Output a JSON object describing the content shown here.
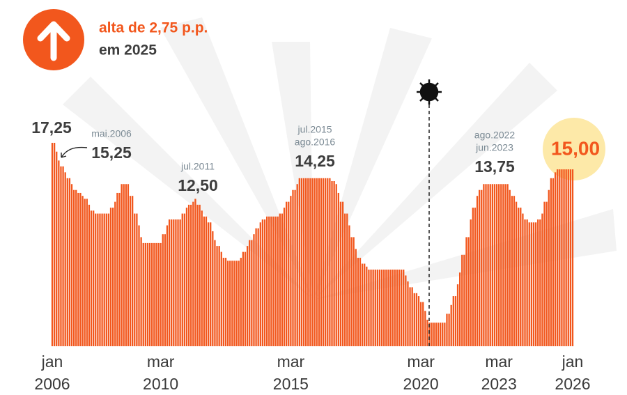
{
  "chart_data": {
    "type": "bar",
    "title": "alta de 2,75 p.p.",
    "subtitle": "em 2025",
    "color": "#f2571d",
    "ylim": [
      0,
      17.25
    ],
    "annotations": [
      "mai.2006",
      "jul.2011",
      "jul.2015",
      "ago.2016",
      "ago.2022",
      "jun.2023"
    ],
    "categories": [
      "jan\n2006",
      null,
      null,
      null,
      null,
      null,
      null,
      null,
      null,
      null,
      null,
      null,
      null,
      null,
      null,
      null,
      null,
      null,
      null,
      null,
      null,
      null,
      null,
      null,
      null,
      null,
      null,
      null,
      null,
      null,
      null,
      null,
      null,
      null,
      null,
      null,
      null,
      null,
      null,
      null,
      null,
      null,
      null,
      null,
      null,
      null,
      null,
      null,
      null,
      null,
      "mar\n2010",
      null,
      null,
      null,
      null,
      null,
      null,
      null,
      null,
      null,
      null,
      null,
      null,
      null,
      null,
      null,
      null,
      null,
      null,
      null,
      null,
      null,
      null,
      null,
      null,
      null,
      null,
      null,
      null,
      null,
      null,
      null,
      null,
      null,
      null,
      null,
      null,
      null,
      null,
      null,
      null,
      null,
      null,
      null,
      null,
      null,
      null,
      null,
      null,
      null,
      null,
      null,
      null,
      null,
      null,
      null,
      null,
      null,
      null,
      null,
      "mar\n2015",
      null,
      null,
      null,
      null,
      null,
      null,
      null,
      null,
      null,
      null,
      null,
      null,
      null,
      null,
      null,
      null,
      null,
      null,
      null,
      null,
      null,
      null,
      null,
      null,
      null,
      null,
      null,
      null,
      null,
      null,
      null,
      null,
      null,
      null,
      null,
      null,
      null,
      null,
      null,
      null,
      null,
      null,
      null,
      null,
      null,
      null,
      null,
      null,
      null,
      null,
      null,
      null,
      null,
      null,
      null,
      null,
      null,
      null,
      null,
      "mar\n2020",
      null,
      null,
      null,
      null,
      null,
      null,
      null,
      null,
      null,
      null,
      null,
      null,
      null,
      null,
      null,
      null,
      null,
      null,
      null,
      null,
      null,
      null,
      null,
      null,
      null,
      null,
      null,
      null,
      null,
      null,
      null,
      null,
      null,
      null,
      null,
      "mar\n2023",
      null,
      null,
      null,
      null,
      null,
      null,
      null,
      null,
      null,
      null,
      null,
      null,
      null,
      null,
      null,
      null,
      null,
      null,
      null,
      null,
      null,
      null,
      null,
      null,
      null,
      null,
      null,
      null,
      null,
      null,
      null,
      null,
      null,
      "jan\n2026"
    ],
    "values": [
      17.25,
      17.25,
      16.5,
      15.75,
      15.25,
      15.25,
      14.75,
      14.25,
      14.25,
      13.75,
      13.25,
      13.25,
      13,
      13,
      12.75,
      12.5,
      12.5,
      12,
      11.5,
      11.5,
      11.25,
      11.25,
      11.25,
      11.25,
      11.25,
      11.25,
      11.25,
      11.75,
      11.75,
      12.25,
      13,
      13,
      13.75,
      13.75,
      13.75,
      13.75,
      12.75,
      12.75,
      11.25,
      11.25,
      10.25,
      9.25,
      8.75,
      8.75,
      8.75,
      8.75,
      8.75,
      8.75,
      8.75,
      8.75,
      8.75,
      9.5,
      9.5,
      10.25,
      10.75,
      10.75,
      10.75,
      10.75,
      10.75,
      10.75,
      11.25,
      11.25,
      11.75,
      12,
      12,
      12.25,
      12.5,
      12,
      12,
      11.5,
      11,
      11,
      10.5,
      10.5,
      9.75,
      9,
      8.5,
      8.5,
      8,
      7.5,
      7.5,
      7.25,
      7.25,
      7.25,
      7.25,
      7.25,
      7.25,
      7.5,
      8,
      8,
      8.5,
      9,
      9,
      9.5,
      10,
      10,
      10.5,
      10.75,
      10.75,
      11,
      11,
      11,
      11,
      11,
      11,
      11.25,
      11.25,
      11.75,
      12.25,
      12.25,
      12.75,
      13.25,
      13.25,
      13.75,
      14.25,
      14.25,
      14.25,
      14.25,
      14.25,
      14.25,
      14.25,
      14.25,
      14.25,
      14.25,
      14.25,
      14.25,
      14.25,
      14.25,
      14.25,
      14,
      14,
      13.75,
      13,
      12.25,
      12.25,
      11.25,
      11.25,
      10.25,
      9.25,
      9.25,
      8.25,
      7.5,
      7.5,
      7,
      7,
      6.75,
      6.5,
      6.5,
      6.5,
      6.5,
      6.5,
      6.5,
      6.5,
      6.5,
      6.5,
      6.5,
      6.5,
      6.5,
      6.5,
      6.5,
      6.5,
      6.5,
      6.5,
      6,
      5.5,
      5,
      5,
      4.5,
      4.5,
      4.25,
      3.75,
      3.75,
      3,
      2.25,
      2,
      2,
      2,
      2,
      2,
      2,
      2,
      2,
      2.75,
      2.75,
      3.5,
      4.25,
      4.25,
      5.25,
      6.25,
      7.75,
      7.75,
      9.25,
      9.25,
      10.75,
      11.75,
      11.75,
      12.75,
      13.25,
      13.25,
      13.75,
      13.75,
      13.75,
      13.75,
      13.75,
      13.75,
      13.75,
      13.75,
      13.75,
      13.75,
      13.75,
      13.75,
      13.25,
      12.75,
      12.75,
      12.25,
      11.75,
      11.75,
      11.25,
      10.75,
      10.75,
      10.5,
      10.5,
      10.5,
      10.5,
      10.75,
      10.75,
      11.25,
      12.25,
      12.25,
      13.25,
      14.25,
      14.25,
      14.75,
      15,
      15,
      15,
      15,
      15,
      15,
      15,
      15
    ],
    "value_labels": [
      "17,25",
      null,
      null,
      null,
      "15,25",
      null,
      null,
      null,
      null,
      null,
      null,
      null,
      null,
      null,
      null,
      null,
      null,
      null,
      null,
      null,
      null,
      null,
      null,
      null,
      null,
      null,
      null,
      null,
      null,
      null,
      null,
      null,
      null,
      null,
      null,
      null,
      null,
      null,
      null,
      null,
      null,
      null,
      null,
      null,
      null,
      null,
      null,
      null,
      null,
      null,
      null,
      null,
      null,
      null,
      null,
      null,
      null,
      null,
      null,
      null,
      null,
      null,
      null,
      null,
      null,
      null,
      "12,50",
      null,
      null,
      null,
      null,
      null,
      null,
      null,
      null,
      null,
      null,
      null,
      null,
      null,
      null,
      null,
      null,
      null,
      null,
      null,
      null,
      null,
      null,
      null,
      null,
      null,
      null,
      null,
      null,
      null,
      null,
      null,
      null,
      null,
      null,
      null,
      null,
      null,
      null,
      null,
      null,
      null,
      null,
      null,
      null,
      null,
      null,
      null,
      "14,25",
      null,
      null,
      null,
      null,
      null,
      null,
      null,
      null,
      null,
      null,
      null,
      null,
      null,
      null,
      null,
      null,
      null,
      null,
      null,
      null,
      null,
      null,
      null,
      null,
      null,
      null,
      null,
      null,
      null,
      null,
      null,
      null,
      null,
      null,
      null,
      null,
      null,
      null,
      null,
      null,
      null,
      null,
      null,
      null,
      null,
      null,
      null,
      null,
      null,
      null,
      null,
      null,
      null,
      null,
      null,
      null,
      null,
      null,
      null,
      null,
      null,
      null,
      null,
      null,
      null,
      null,
      null,
      null,
      null,
      null,
      null,
      null,
      null,
      null,
      null,
      null,
      null,
      null,
      null,
      null,
      null,
      null,
      null,
      null,
      "13,75",
      null,
      null,
      null,
      null,
      null,
      null,
      null,
      null,
      null,
      null,
      null,
      null,
      null,
      null,
      null,
      null,
      null,
      null,
      null,
      null,
      null,
      null,
      null,
      null,
      null,
      null,
      null,
      null,
      null,
      null,
      null,
      null,
      null,
      null,
      null,
      null,
      null,
      null,
      null,
      null,
      "15,00"
    ]
  }
}
